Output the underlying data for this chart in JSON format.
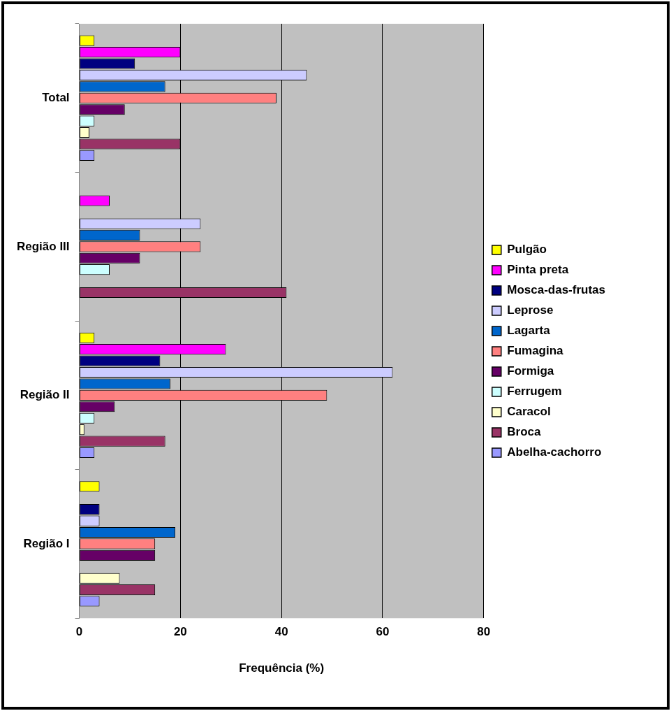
{
  "chart_data": {
    "type": "bar",
    "orientation": "horizontal",
    "xlabel": "Frequência (%)",
    "categories": [
      "Total",
      "Região III",
      "Região II",
      "Região I"
    ],
    "series": [
      {
        "name": "Pulgão",
        "color": "#ffff00",
        "values": [
          3,
          null,
          3,
          4
        ]
      },
      {
        "name": "Pinta preta",
        "color": "#ff00ff",
        "values": [
          20,
          6,
          29,
          null
        ]
      },
      {
        "name": "Mosca-das-frutas",
        "color": "#000080",
        "values": [
          11,
          null,
          16,
          4
        ]
      },
      {
        "name": "Leprose",
        "color": "#ccccff",
        "values": [
          45,
          24,
          62,
          4
        ]
      },
      {
        "name": "Lagarta",
        "color": "#0066cc",
        "values": [
          17,
          12,
          18,
          19
        ]
      },
      {
        "name": "Fumagina",
        "color": "#ff8080",
        "values": [
          39,
          24,
          49,
          15
        ]
      },
      {
        "name": "Formiga",
        "color": "#660066",
        "values": [
          9,
          12,
          7,
          15
        ]
      },
      {
        "name": "Ferrugem",
        "color": "#ccffff",
        "values": [
          3,
          6,
          3,
          null
        ]
      },
      {
        "name": "Caracol",
        "color": "#ffffcc",
        "values": [
          2,
          null,
          1,
          8
        ]
      },
      {
        "name": "Broca",
        "color": "#993366",
        "values": [
          20,
          41,
          17,
          15
        ]
      },
      {
        "name": "Abelha-cachorro",
        "color": "#9999ff",
        "values": [
          3,
          null,
          3,
          4
        ]
      }
    ],
    "xlim": [
      0,
      80
    ],
    "xticks": [
      0,
      20,
      40,
      60,
      80
    ],
    "grid": "x",
    "legend": "right"
  }
}
